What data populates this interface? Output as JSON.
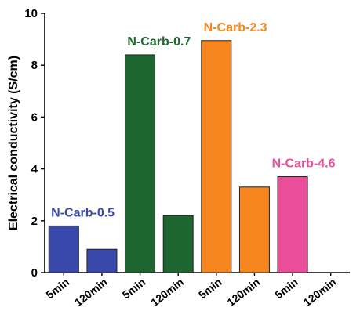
{
  "chart_data": {
    "type": "bar",
    "title": "",
    "xlabel": "",
    "ylabel": "Electrical conductivity (S/cm)",
    "ylim": [
      0,
      10
    ],
    "yticks": [
      0,
      2,
      4,
      6,
      8,
      10
    ],
    "categories": [
      "5min",
      "120min",
      "5min",
      "120min",
      "5min",
      "120min",
      "5min",
      "120min"
    ],
    "values": [
      1.8,
      0.9,
      8.4,
      2.2,
      8.95,
      3.3,
      3.7,
      null
    ],
    "groups": [
      {
        "name": "N-Carb-0.5",
        "color": "#3949ab",
        "bars": [
          0,
          1
        ]
      },
      {
        "name": "N-Carb-0.7",
        "color": "#1e6630",
        "bars": [
          2,
          3
        ]
      },
      {
        "name": "N-Carb-2.3",
        "color": "#f7861e",
        "bars": [
          4,
          5
        ]
      },
      {
        "name": "N-Carb-4.6",
        "color": "#ea4d9a",
        "bars": [
          6,
          7
        ]
      }
    ],
    "grid": false,
    "legend": "none"
  }
}
